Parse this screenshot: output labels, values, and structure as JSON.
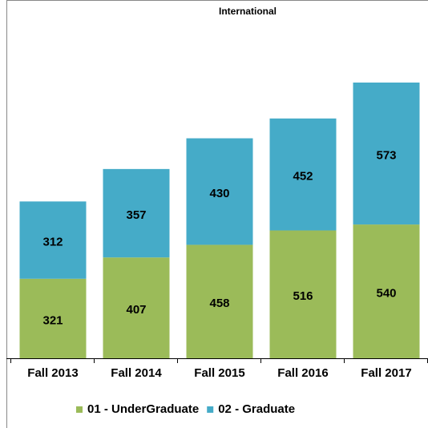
{
  "chart_data": {
    "type": "bar",
    "stacked": true,
    "title": "International",
    "categories": [
      "Fall 2013",
      "Fall 2014",
      "Fall 2015",
      "Fall 2016",
      "Fall 2017"
    ],
    "series": [
      {
        "name": "01 - UnderGraduate",
        "color": "#9bbb59",
        "values": [
          321,
          407,
          458,
          516,
          540
        ]
      },
      {
        "name": "02 - Graduate",
        "color": "#45abc8",
        "values": [
          312,
          357,
          430,
          452,
          573
        ]
      }
    ],
    "legend": "bottom"
  }
}
